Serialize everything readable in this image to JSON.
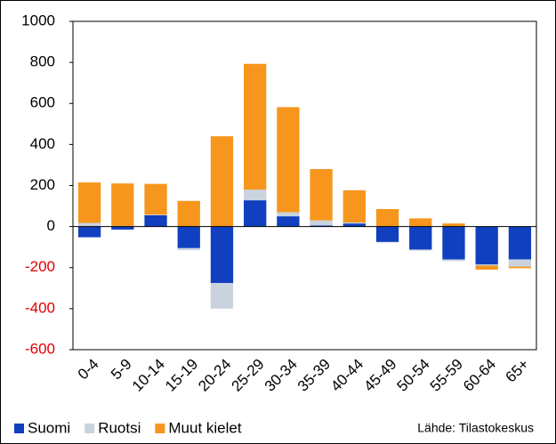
{
  "chart_data": {
    "type": "stacked_bar",
    "categories": [
      "0-4",
      "5-9",
      "10-14",
      "15-19",
      "20-24",
      "25-29",
      "30-34",
      "35-39",
      "40-44",
      "45-49",
      "50-54",
      "55-59",
      "60-64",
      "65+"
    ],
    "series": [
      {
        "name": "Suomi",
        "color": "#1040bf",
        "values": [
          -52,
          -15,
          55,
          -105,
          -275,
          128,
          50,
          5,
          15,
          -75,
          -112,
          -160,
          -185,
          -160
        ]
      },
      {
        "name": "Ruotsi",
        "color": "#c9d3de",
        "values": [
          18,
          3,
          3,
          -10,
          -125,
          52,
          20,
          25,
          5,
          -3,
          -5,
          -8,
          -5,
          -35
        ]
      },
      {
        "name": "Muut kielet",
        "color": "#f7961d",
        "values": [
          197,
          207,
          150,
          125,
          440,
          613,
          512,
          250,
          157,
          85,
          40,
          15,
          -20,
          -8
        ]
      }
    ],
    "ylim": [
      -600,
      1000
    ],
    "yticks": [
      -600,
      -400,
      -200,
      0,
      200,
      400,
      600,
      800,
      1000
    ],
    "negative_tick_color": "#e00000",
    "legend": "bottom-left",
    "source": "Lähde: Tilastokeskus"
  }
}
